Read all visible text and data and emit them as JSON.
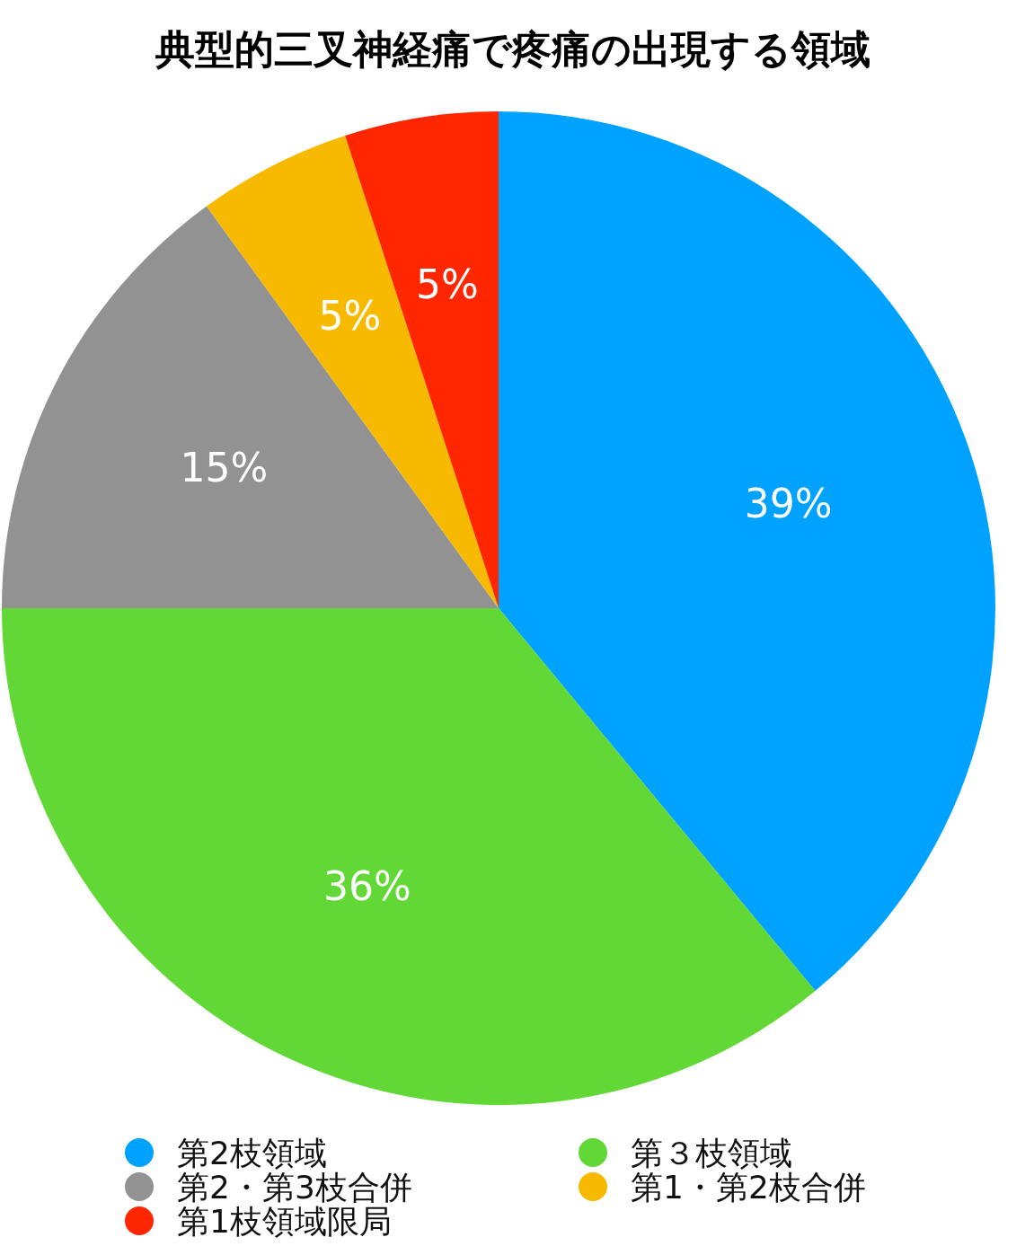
{
  "chart_data": {
    "type": "pie",
    "title": "典型的三叉神経痛で疼痛の出現する領域",
    "categories": [
      "第2枝領域",
      "第３枝領域",
      "第2・第3枝合併",
      "第1・第2枝合併",
      "第1枝領域限局"
    ],
    "values": [
      39,
      36,
      15,
      5,
      5
    ],
    "colors": [
      "#00a2ff",
      "#61d836",
      "#929292",
      "#f8ba00",
      "#ff2600"
    ],
    "value_labels": [
      "39%",
      "36%",
      "15%",
      "5%",
      "5%"
    ],
    "legend": "bottom"
  }
}
